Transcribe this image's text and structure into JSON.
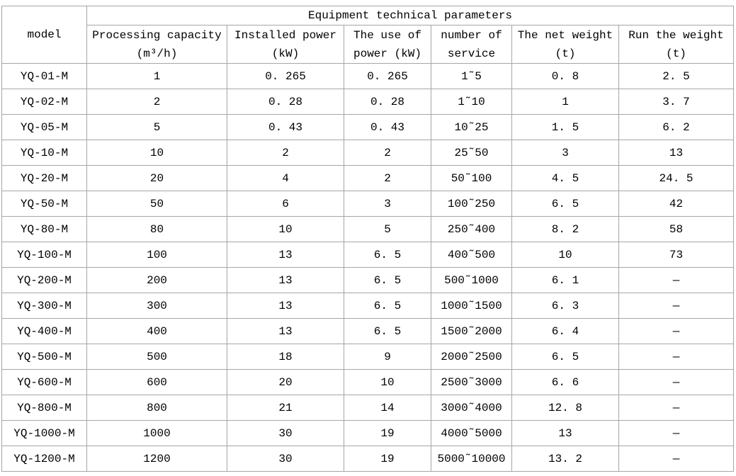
{
  "table": {
    "title": "Equipment technical parameters",
    "model_header": "model",
    "columns": [
      {
        "line1": "Processing capacity",
        "line2": "(m³/h)"
      },
      {
        "line1": "Installed power",
        "line2": "(kW)"
      },
      {
        "line1": "The use of",
        "line2": "power (kW)"
      },
      {
        "line1": "number of",
        "line2": "service"
      },
      {
        "line1": "The net weight",
        "line2": "(t)"
      },
      {
        "line1": "Run the weight",
        "line2": "(t)"
      }
    ],
    "rows": [
      [
        "YQ-01-M",
        "1",
        "0.265",
        "0.265",
        "1~5",
        "0.8",
        "2.5"
      ],
      [
        "YQ-02-M",
        "2",
        "0.28",
        "0.28",
        "1~10",
        "1",
        "3.7"
      ],
      [
        "YQ-05-M",
        "5",
        "0.43",
        "0.43",
        "10~25",
        "1.5",
        "6.2"
      ],
      [
        "YQ-10-M",
        "10",
        "2",
        "2",
        "25~50",
        "3",
        "13"
      ],
      [
        "YQ-20-M",
        "20",
        "4",
        "2",
        "50~100",
        "4.5",
        "24.5"
      ],
      [
        "YQ-50-M",
        "50",
        "6",
        "3",
        "100~250",
        "6.5",
        "42"
      ],
      [
        "YQ-80-M",
        "80",
        "10",
        "5",
        "250~400",
        "8.2",
        "58"
      ],
      [
        "YQ-100-M",
        "100",
        "13",
        "6.5",
        "400~500",
        "10",
        "73"
      ],
      [
        "YQ-200-M",
        "200",
        "13",
        "6.5",
        "500~1000",
        "6.1",
        "—"
      ],
      [
        "YQ-300-M",
        "300",
        "13",
        "6.5",
        "1000~1500",
        "6.3",
        "—"
      ],
      [
        "YQ-400-M",
        "400",
        "13",
        "6.5",
        "1500~2000",
        "6.4",
        "—"
      ],
      [
        "YQ-500-M",
        "500",
        "18",
        "9",
        "2000~2500",
        "6.5",
        "—"
      ],
      [
        "YQ-600-M",
        "600",
        "20",
        "10",
        "2500~3000",
        "6.6",
        "—"
      ],
      [
        "YQ-800-M",
        "800",
        "21",
        "14",
        "3000~4000",
        "12.8",
        "—"
      ],
      [
        "YQ-1000-M",
        "1000",
        "30",
        "19",
        "4000~5000",
        "13",
        "—"
      ],
      [
        "YQ-1200-M",
        "1200",
        "30",
        "19",
        "5000~10000",
        "13.2",
        "—"
      ]
    ],
    "border_color": "#a6a6a6",
    "text_color": "#000000",
    "background_color": "#ffffff"
  }
}
